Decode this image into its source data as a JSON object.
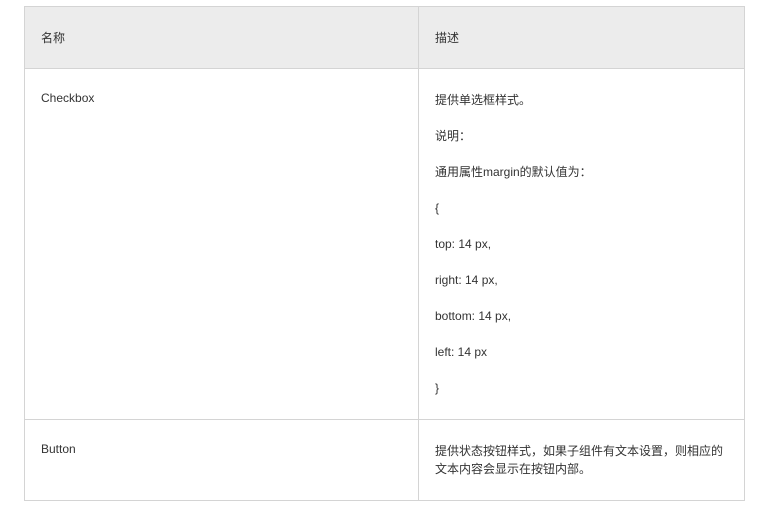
{
  "table": {
    "columns": [
      "名称",
      "描述"
    ],
    "header_bg": "#ececec",
    "border_color": "#d4d4d4",
    "text_color": "#333333",
    "font_size": 12,
    "rows": [
      {
        "name": "Checkbox",
        "desc_lines": [
          "提供单选框样式。",
          "说明：",
          "通用属性margin的默认值为：",
          "{",
          "top: 14 px,",
          "right: 14 px,",
          "bottom: 14 px,",
          "left: 14 px",
          "}"
        ]
      },
      {
        "name": "Button",
        "desc_lines": [
          "提供状态按钮样式，如果子组件有文本设置，则相应的文本内容会显示在按钮内部。"
        ]
      }
    ]
  }
}
